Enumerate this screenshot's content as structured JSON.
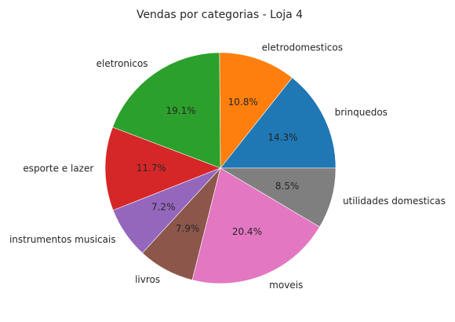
{
  "chart_data": {
    "type": "pie",
    "title": "Vendas por categorias - Loja 4",
    "start_angle_deg": 0,
    "direction": "counterclockwise",
    "slices": [
      {
        "label": "brinquedos",
        "value": 14.3,
        "pct_text": "14.3%",
        "color": "#1f77b4"
      },
      {
        "label": "eletrodomesticos",
        "value": 10.8,
        "pct_text": "10.8%",
        "color": "#ff7f0e"
      },
      {
        "label": "eletronicos",
        "value": 19.1,
        "pct_text": "19.1%",
        "color": "#2ca02c"
      },
      {
        "label": "esporte e lazer",
        "value": 11.7,
        "pct_text": "11.7%",
        "color": "#d62728"
      },
      {
        "label": "instrumentos musicais",
        "value": 7.2,
        "pct_text": "7.2%",
        "color": "#9467bd"
      },
      {
        "label": "livros",
        "value": 7.9,
        "pct_text": "7.9%",
        "color": "#8c564b"
      },
      {
        "label": "moveis",
        "value": 20.4,
        "pct_text": "20.4%",
        "color": "#e377c2"
      },
      {
        "label": "utilidades domesticas",
        "value": 8.5,
        "pct_text": "8.5%",
        "color": "#7f7f7f"
      }
    ]
  }
}
